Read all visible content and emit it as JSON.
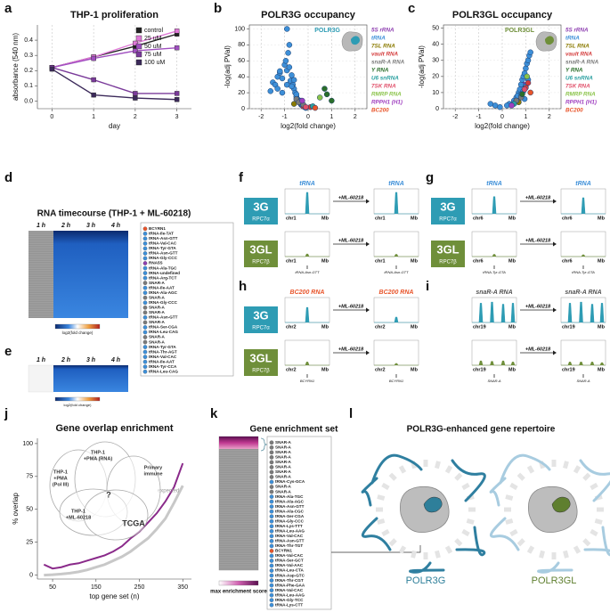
{
  "panels": {
    "a": {
      "label": "a",
      "type": "line",
      "title": "THP-1 proliferation",
      "x_label": "day",
      "y_label": "absorbance (540 nm)",
      "x": [
        0,
        1,
        2,
        3
      ],
      "xlim": [
        -0.35,
        3.35
      ],
      "xticks": [
        0,
        1,
        2,
        3
      ],
      "ylim": [
        -0.05,
        0.5
      ],
      "yticks": [
        {
          "value": 0,
          "label": "0.0"
        },
        0.1,
        0.2,
        0.3,
        0.4
      ],
      "grid": true,
      "series": [
        {
          "name": "control",
          "color": "#222222",
          "values": [
            0.22,
            0.29,
            0.36,
            0.44
          ]
        },
        {
          "name": "25 uM",
          "color": "#e07ad8",
          "values": [
            0.22,
            0.29,
            0.38,
            0.46
          ]
        },
        {
          "name": "50 uM",
          "color": "#a04fc0",
          "values": [
            0.22,
            0.28,
            0.33,
            0.35
          ]
        },
        {
          "name": "75 uM",
          "color": "#7a3a9a",
          "values": [
            0.22,
            0.14,
            0.05,
            0.05
          ]
        },
        {
          "name": "100 uM",
          "color": "#3c2a5a",
          "values": [
            0.21,
            0.04,
            0.02,
            0.01
          ]
        }
      ]
    },
    "b": {
      "label": "b",
      "type": "scatter",
      "title": "POLR3G occupancy",
      "x_label": "log2(fold change)",
      "y_label": "-log(adj PVal)",
      "inset_label": "POLR3G",
      "inset_color": "#2e9cb4",
      "xlim": [
        -2.5,
        2.5
      ],
      "xticks": [
        -2,
        -1,
        0,
        1,
        2
      ],
      "ylim": [
        0,
        105
      ],
      "yticks": [
        0,
        20,
        40,
        60,
        80,
        100
      ],
      "grid": true,
      "series": [
        {
          "name": "5S rRNA",
          "color": "#8e3fb0",
          "x": [
            -0.3
          ],
          "values": [
            5
          ]
        },
        {
          "name": "tRNA",
          "color": "#3d8fd8",
          "x": [
            -1.5,
            -1.4,
            -1.3,
            -1.2,
            -1.1,
            -1.0,
            -0.95,
            -0.9,
            -0.85,
            -0.8,
            -0.75,
            -0.7,
            -0.65,
            -0.6,
            -0.55,
            -0.5,
            -0.45,
            -0.4,
            -0.35,
            -0.3,
            -0.25,
            -0.2,
            -0.15,
            -0.1,
            -1.6,
            -1.3,
            -1.1,
            -0.9,
            -0.7,
            -0.5,
            -0.3,
            -0.9,
            -1.2,
            -0.8,
            -0.6
          ],
          "values": [
            33,
            30,
            40,
            45,
            38,
            55,
            60,
            48,
            70,
            52,
            35,
            42,
            30,
            25,
            20,
            15,
            12,
            10,
            8,
            6,
            4,
            3,
            2,
            1,
            22,
            25,
            20,
            30,
            28,
            18,
            10,
            100,
            47,
            80,
            36
          ]
        },
        {
          "name": "7SL RNA",
          "color": "#8a7a00",
          "x": [
            -0.6
          ],
          "values": [
            6
          ]
        },
        {
          "name": "vault RNA",
          "color": "#d43c3c",
          "x": [
            -0.2,
            0.1
          ],
          "values": [
            3,
            2
          ]
        },
        {
          "name": "snaR-A RNA",
          "color": "#7a7a7a",
          "x": [
            -0.5,
            -0.4,
            -0.2
          ],
          "values": [
            12,
            8,
            5
          ]
        },
        {
          "name": "Y RNA",
          "color": "#2a6e2a",
          "x": [
            0.7,
            0.8,
            1.0
          ],
          "values": [
            25,
            18,
            10
          ]
        },
        {
          "name": "U6 snRNA",
          "color": "#2aa0a0",
          "x": [
            0.2
          ],
          "values": [
            3
          ]
        },
        {
          "name": "7SK RNA",
          "color": "#e0506a",
          "x": [
            -0.1
          ],
          "values": [
            2
          ]
        },
        {
          "name": "RMRP RNA",
          "color": "#8bc34a",
          "x": [
            0.5
          ],
          "values": [
            14
          ]
        },
        {
          "name": "RPPH1 (H1)",
          "color": "#a040c0",
          "x": [
            -0.25
          ],
          "values": [
            10
          ]
        },
        {
          "name": "BC200",
          "color": "#e8542a",
          "x": [
            0.3
          ],
          "values": [
            1
          ]
        }
      ]
    },
    "c": {
      "label": "c",
      "type": "scatter",
      "title": "POLR3GL occupancy",
      "x_label": "log2(fold change)",
      "y_label": "-log(adj PVal)",
      "inset_label": "POLR3GL",
      "inset_color": "#6f8f3a",
      "xlim": [
        -2.5,
        2.5
      ],
      "xticks": [
        -2,
        -1,
        0,
        1,
        2
      ],
      "ylim": [
        0,
        52
      ],
      "yticks": [
        0,
        10,
        20,
        30,
        40,
        50
      ],
      "grid": true,
      "series": [
        {
          "name": "5S rRNA",
          "color": "#8e3fb0",
          "x": [
            0.9
          ],
          "values": [
            15
          ]
        },
        {
          "name": "tRNA",
          "color": "#3d8fd8",
          "x": [
            0.5,
            0.6,
            0.7,
            0.75,
            0.8,
            0.85,
            0.9,
            0.95,
            1.0,
            1.05,
            1.1,
            1.15,
            1.2,
            0.65,
            0.9,
            1.0,
            0.8,
            0.3,
            0.2,
            -0.1,
            -0.3,
            -0.5,
            1.1,
            0.95
          ],
          "values": [
            5,
            7,
            10,
            12,
            15,
            18,
            20,
            22,
            25,
            28,
            30,
            33,
            35,
            8,
            11,
            14,
            9,
            3,
            2,
            1,
            2,
            3,
            18,
            6
          ]
        },
        {
          "name": "7SL RNA",
          "color": "#8a7a00",
          "x": [
            0.7
          ],
          "values": [
            4
          ]
        },
        {
          "name": "vault RNA",
          "color": "#d43c3c",
          "x": [
            1.0,
            1.1
          ],
          "values": [
            13,
            16
          ]
        },
        {
          "name": "snaR-A RNA",
          "color": "#7a7a7a",
          "x": [
            0.6,
            0.8
          ],
          "values": [
            5,
            7
          ]
        },
        {
          "name": "Y RNA",
          "color": "#2a6e2a",
          "x": [
            0.85
          ],
          "values": [
            9
          ]
        },
        {
          "name": "U6 snRNA",
          "color": "#2aa0a0",
          "x": [
            0.5
          ],
          "values": [
            3
          ]
        },
        {
          "name": "7SK RNA",
          "color": "#e0506a",
          "x": [
            0.95
          ],
          "values": [
            12
          ]
        },
        {
          "name": "RMRP RNA",
          "color": "#8bc34a",
          "x": [
            1.05
          ],
          "values": [
            20
          ]
        },
        {
          "name": "RPPH1 (H1)",
          "color": "#a040c0",
          "x": [
            0.4
          ],
          "values": [
            2
          ]
        },
        {
          "name": "BC200",
          "color": "#e8542a",
          "x": [
            1.2
          ],
          "values": [
            10
          ]
        }
      ]
    },
    "d": {
      "label": "d",
      "title": "RNA timecourse (THP-1 + ML-60218)",
      "columns": [
        "1 h",
        "2 h",
        "3 h",
        "4 h"
      ],
      "colorbar_label": "log2(fold change)",
      "genes": [
        "BCYRN1",
        "tRNA-Ile-TAT",
        "tRNA-Asn-GTT",
        "tRNA-Val-CAC",
        "tRNA-Tyr-GTA",
        "tRNA-Asn-GTT",
        "tRNA-Gly-CCC",
        "RNA5S",
        "tRNA-Ala-TGC",
        "tRNA-undefined",
        "tRNA-Arg-TCT",
        "SNAR-A",
        "tRNA-Ile-AAT",
        "tRNA-Ala-AGC",
        "SNAR-A",
        "tRNA-Gly-CCC",
        "SNAR-A",
        "SNAR-A",
        "tRNA-Asn-GTT",
        "SNAR-A",
        "tRNA-Ser-CGA",
        "tRNA-Leu-CAG",
        "SNAR-A",
        "SNAR-A",
        "tRNA-Tyr-GTA",
        "tRNA-Thr-AGT",
        "tRNA-Val-CAC",
        "tRNA-Ile-AAT",
        "tRNA-Tyr-CCA",
        "tRNA-Leu-CAG"
      ]
    },
    "e": {
      "label": "e",
      "columns": [
        "1 h",
        "2 h",
        "3 h",
        "4 h"
      ],
      "colorbar_label": "log2(fold change)"
    },
    "f": {
      "label": "f",
      "title": "tRNA",
      "title_color": "#3d8fd8",
      "chrom": "chr1",
      "unit": "Mb",
      "treatment": "+ML-60218",
      "gene": "tRNA-Asn-GTT",
      "rows": [
        {
          "name": "3G",
          "subtitle": "RPC7α",
          "color": "#2e9cb4"
        },
        {
          "name": "3GL",
          "subtitle": "RPC7β",
          "color": "#6f8f3a"
        }
      ]
    },
    "g": {
      "label": "g",
      "title": "tRNA",
      "title_color": "#3d8fd8",
      "chrom": "chr6",
      "unit": "Mb",
      "treatment": "+ML-60218",
      "gene": "tRNA-Tyr-GTA",
      "rows": [
        {
          "name": "3G",
          "subtitle": "RPC7α",
          "color": "#2e9cb4"
        },
        {
          "name": "3GL",
          "subtitle": "RPC7β",
          "color": "#6f8f3a"
        }
      ]
    },
    "h": {
      "label": "h",
      "title": "BC200 RNA",
      "title_color": "#e8542a",
      "chrom": "chr2",
      "unit": "Mb",
      "treatment": "+ML-60218",
      "gene": "BCYRN1",
      "rows": [
        {
          "name": "3G",
          "subtitle": "RPC7α",
          "color": "#2e9cb4"
        },
        {
          "name": "3GL",
          "subtitle": "RPC7β",
          "color": "#6f8f3a"
        }
      ]
    },
    "i": {
      "label": "i",
      "title": "snaR-A RNA",
      "title_color": "#555555",
      "chrom": "chr19",
      "unit": "Mb",
      "treatment": "+ML-60218",
      "gene": "SNAR-A"
    },
    "j": {
      "label": "j",
      "type": "line",
      "title": "Gene overlap enrichment",
      "x_label": "top gene set (n)",
      "y_label": "% overlap",
      "x": [
        30,
        50,
        70,
        90,
        110,
        130,
        150,
        170,
        190,
        210,
        230,
        250,
        270,
        290,
        310,
        330,
        350
      ],
      "xlim": [
        15,
        370
      ],
      "xticks": [
        50,
        150,
        250,
        350
      ],
      "ylim": [
        -3,
        104
      ],
      "yticks": [
        0,
        25,
        50,
        75,
        100
      ],
      "grid": false,
      "series": [
        {
          "color": "#8a2a8a",
          "values": [
            8,
            5,
            6,
            8,
            9,
            11,
            13,
            15,
            18,
            22,
            28,
            33,
            40,
            47,
            56,
            67,
            85
          ]
        },
        {
          "name": "expected",
          "color": "#c8c8c8",
          "values": [
            0,
            0.3,
            0.8,
            1.5,
            2.5,
            4,
            6,
            8,
            11,
            14,
            18,
            23,
            28,
            35,
            43,
            55,
            68
          ]
        }
      ],
      "venn": [
        {
          "lines": [
            "THP-1",
            "+PMA",
            "(Pol III)"
          ]
        },
        {
          "lines": [
            "THP-1",
            "+PMA (RNA)"
          ]
        },
        {
          "lines": [
            "Primary",
            "immune"
          ]
        },
        {
          "lines": [
            "THP-1",
            "+ML-60218"
          ]
        },
        {
          "lines": [
            "TCGA"
          ]
        },
        {
          "lines": [
            "?"
          ]
        }
      ]
    },
    "k": {
      "label": "k",
      "title": "Gene enrichment set",
      "colorbar_label": "max enrichment score",
      "genes": [
        "SNAR-A",
        "SNAR-A",
        "SNAR-A",
        "SNAR-A",
        "SNAR-A",
        "SNAR-A",
        "SNAR-A",
        "SNAR-A",
        "tRNA-Cys-GCA",
        "SNAR-A",
        "SNAR-A",
        "tRNA-Ala-TGC",
        "tRNA-Ala-AGC",
        "tRNA-Asn-GTT",
        "tRNA-Ala-CGC",
        "tRNA-Ser-CGA",
        "tRNA-Gly-CCC",
        "tRNA-Lys-TTT",
        "tRNA-Leu-AAG",
        "tRNA-Val-CAC",
        "tRNA-Asn-GTT",
        "tRNA-Thr-TGT",
        "BCYRN1",
        "tRNA-Val-CAC",
        "tRNA-Ser-GCT",
        "tRNA-Val-AAC",
        "tRNA-Leu-CTA",
        "tRNA-Asp-GTC",
        "tRNA-Thr-CGT",
        "tRNA-Phe-GAA",
        "tRNA-Val-CAC",
        "tRNA-Leu-AAG",
        "tRNA-Gly-TCC",
        "tRNA-Lys-CTT"
      ]
    },
    "l": {
      "label": "l",
      "title": "POLR3G-enhanced gene repertoire",
      "left_label": "POLR3G",
      "left_color": "#2e7f9a",
      "right_label": "POLR3GL",
      "right_color": "#5f7f2f"
    }
  }
}
